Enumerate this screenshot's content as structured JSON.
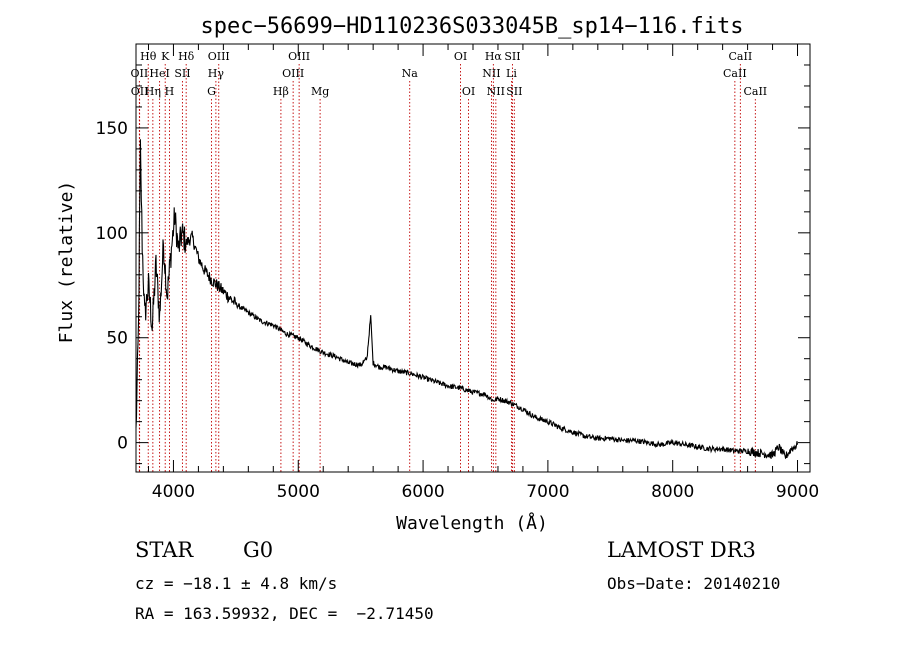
{
  "chart_data": {
    "type": "line",
    "title": "spec−56699−HD110236S033045B_sp14−116.fits",
    "xlabel": "Wavelength (Å)",
    "ylabel": "Flux (relative)",
    "xlim": [
      3700,
      9100
    ],
    "ylim": [
      -14,
      190
    ],
    "x_ticks": [
      4000,
      5000,
      6000,
      7000,
      8000,
      9000
    ],
    "x_tick_labels": [
      "4000",
      "5000",
      "6000",
      "7000",
      "8000",
      "9000"
    ],
    "y_ticks": [
      0,
      50,
      100,
      150
    ],
    "y_tick_labels": [
      "0",
      "50",
      "100",
      "150"
    ],
    "series": [
      {
        "name": "flux",
        "x": [
          3700,
          3720,
          3735,
          3750,
          3770,
          3800,
          3830,
          3860,
          3890,
          3920,
          3950,
          3980,
          4010,
          4040,
          4070,
          4100,
          4150,
          4200,
          4250,
          4300,
          4350,
          4400,
          4500,
          4600,
          4700,
          4800,
          4900,
          5000,
          5100,
          5200,
          5300,
          5400,
          5500,
          5550,
          5580,
          5600,
          5650,
          5700,
          5800,
          5900,
          6000,
          6100,
          6200,
          6300,
          6400,
          6500,
          6560,
          6600,
          6700,
          6800,
          6900,
          7000,
          7100,
          7200,
          7300,
          7400,
          7500,
          7600,
          7700,
          7800,
          7900,
          8000,
          8100,
          8200,
          8300,
          8400,
          8500,
          8600,
          8700,
          8800,
          8850,
          8900,
          8950,
          9000
        ],
        "values": [
          5,
          55,
          140,
          95,
          60,
          75,
          55,
          85,
          60,
          95,
          70,
          90,
          108,
          92,
          100,
          95,
          98,
          88,
          82,
          78,
          75,
          72,
          66,
          62,
          58,
          56,
          52,
          50,
          46,
          43,
          41,
          38,
          37,
          40,
          60,
          38,
          36,
          36,
          34,
          33,
          31,
          29,
          27,
          26,
          24,
          23,
          20,
          21,
          19,
          16,
          12,
          10,
          7,
          5,
          3,
          2,
          2,
          1,
          1,
          0,
          -1,
          0,
          -1,
          -2,
          -3,
          -3,
          -4,
          -4,
          -5,
          -6,
          -2,
          -7,
          -3,
          -1
        ]
      }
    ],
    "lines": [
      {
        "label": "Hθ",
        "wavelength": 3798,
        "row": 1
      },
      {
        "label": "K",
        "wavelength": 3934,
        "row": 1
      },
      {
        "label": "Hδ",
        "wavelength": 4102,
        "row": 1
      },
      {
        "label": "OIII",
        "wavelength": 4363,
        "row": 1
      },
      {
        "label": "OIII",
        "wavelength": 5007,
        "row": 1
      },
      {
        "label": "OI",
        "wavelength": 6300,
        "row": 1
      },
      {
        "label": "Hα",
        "wavelength": 6563,
        "row": 1
      },
      {
        "label": "SII",
        "wavelength": 6716,
        "row": 1
      },
      {
        "label": "CaII",
        "wavelength": 8542,
        "row": 1
      },
      {
        "label": "OII",
        "wavelength": 3727,
        "row": 2
      },
      {
        "label": "HeI",
        "wavelength": 3889,
        "row": 2
      },
      {
        "label": "SII",
        "wavelength": 4072,
        "row": 2
      },
      {
        "label": "Hγ",
        "wavelength": 4340,
        "row": 2
      },
      {
        "label": "OIII",
        "wavelength": 4959,
        "row": 2
      },
      {
        "label": "Na",
        "wavelength": 5893,
        "row": 2
      },
      {
        "label": "NII",
        "wavelength": 6548,
        "row": 2
      },
      {
        "label": "Li",
        "wavelength": 6708,
        "row": 2
      },
      {
        "label": "CaII",
        "wavelength": 8498,
        "row": 2
      },
      {
        "label": "OII",
        "wavelength": 3729,
        "row": 3
      },
      {
        "label": "Hη",
        "wavelength": 3835,
        "row": 3
      },
      {
        "label": "H",
        "wavelength": 3968,
        "row": 3
      },
      {
        "label": "G",
        "wavelength": 4305,
        "row": 3
      },
      {
        "label": "Hβ",
        "wavelength": 4861,
        "row": 3
      },
      {
        "label": "Mg",
        "wavelength": 5175,
        "row": 3
      },
      {
        "label": "OI",
        "wavelength": 6364,
        "row": 3
      },
      {
        "label": "NII",
        "wavelength": 6583,
        "row": 3
      },
      {
        "label": "SII",
        "wavelength": 6731,
        "row": 3
      },
      {
        "label": "CaII",
        "wavelength": 8662,
        "row": 3
      }
    ]
  },
  "info": {
    "class": "STAR",
    "subclass": "G0",
    "survey": "LAMOST DR3",
    "cz": "cz = −18.1 ± 4.8 km/s",
    "obs_date": "Obs−Date: 20140210",
    "coords": "RA = 163.59932, DEC =  −2.71450"
  }
}
